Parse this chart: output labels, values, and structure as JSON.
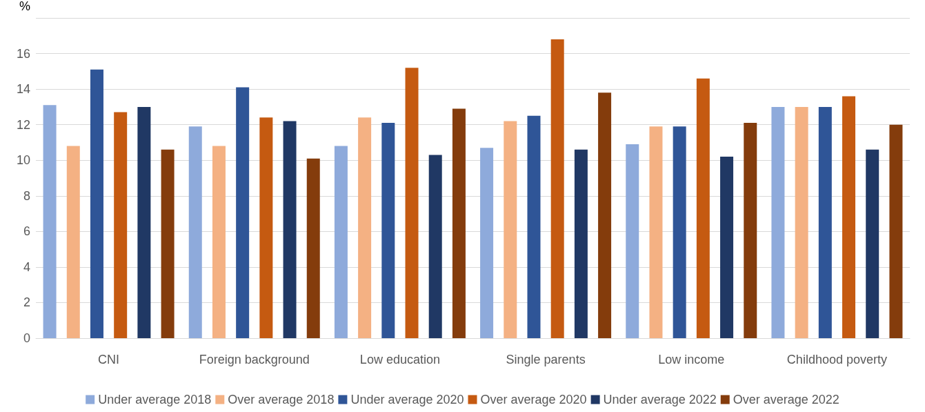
{
  "chart_data": {
    "type": "bar",
    "ylabel": "%",
    "categories": [
      "CNI",
      "Foreign background",
      "Low education",
      "Single parents",
      "Low income",
      "Childhood poverty"
    ],
    "series": [
      {
        "name": "Under average 2018",
        "color": "#8eaadb",
        "values": [
          13.1,
          11.9,
          10.8,
          10.7,
          10.9,
          13.0
        ]
      },
      {
        "name": "Over average 2018",
        "color": "#f4b183",
        "values": [
          10.8,
          10.8,
          12.4,
          12.2,
          11.9,
          13.0
        ]
      },
      {
        "name": "Under average 2020",
        "color": "#2f5597",
        "values": [
          15.1,
          14.1,
          12.1,
          12.5,
          11.9,
          13.0
        ]
      },
      {
        "name": "Over average 2020",
        "color": "#c55a11",
        "values": [
          12.7,
          12.4,
          15.2,
          16.8,
          14.6,
          13.6
        ]
      },
      {
        "name": "Under average 2022",
        "color": "#203864",
        "values": [
          13.0,
          12.2,
          10.3,
          10.6,
          10.2,
          10.6
        ]
      },
      {
        "name": "Over average 2022",
        "color": "#843c0c",
        "values": [
          10.6,
          10.1,
          12.9,
          13.8,
          12.1,
          12.0
        ]
      }
    ],
    "ylim": [
      0,
      18
    ],
    "yticks": [
      0,
      2,
      4,
      6,
      8,
      10,
      12,
      14,
      16,
      {
        "value": 18,
        "label": null
      }
    ],
    "grid": "y",
    "legend": "bottom"
  }
}
